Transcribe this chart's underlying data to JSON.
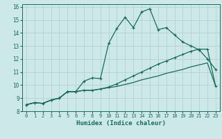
{
  "xlabel": "Humidex (Indice chaleur)",
  "bg_color": "#cce8e8",
  "grid_color": "#b8d4d4",
  "line_color": "#1a6b5a",
  "xlim": [
    -0.5,
    23.5
  ],
  "ylim": [
    8,
    16.2
  ],
  "yticks": [
    8,
    9,
    10,
    11,
    12,
    13,
    14,
    15,
    16
  ],
  "xticks": [
    0,
    1,
    2,
    3,
    4,
    5,
    6,
    7,
    8,
    9,
    10,
    11,
    12,
    13,
    14,
    15,
    16,
    17,
    18,
    19,
    20,
    21,
    22,
    23
  ],
  "line1_x": [
    0,
    1,
    2,
    3,
    4,
    5,
    6,
    7,
    8,
    9,
    10,
    11,
    12,
    13,
    14,
    15,
    16,
    17,
    18,
    19,
    20,
    21,
    22,
    23
  ],
  "line1_y": [
    8.5,
    8.65,
    8.6,
    8.85,
    9.0,
    9.5,
    9.5,
    10.3,
    10.55,
    10.5,
    13.2,
    14.35,
    15.2,
    14.4,
    15.6,
    15.85,
    14.25,
    14.4,
    13.85,
    13.3,
    13.0,
    12.7,
    12.0,
    11.2
  ],
  "line2_x": [
    0,
    1,
    2,
    3,
    4,
    5,
    6,
    7,
    8,
    9,
    10,
    11,
    12,
    13,
    14,
    15,
    16,
    17,
    18,
    19,
    20,
    21,
    22,
    23
  ],
  "line2_y": [
    8.5,
    8.65,
    8.6,
    8.85,
    9.0,
    9.5,
    9.5,
    9.6,
    9.6,
    9.7,
    9.85,
    10.1,
    10.4,
    10.7,
    11.0,
    11.3,
    11.6,
    11.85,
    12.1,
    12.35,
    12.6,
    12.75,
    12.75,
    9.9
  ],
  "line3_x": [
    0,
    1,
    2,
    3,
    4,
    5,
    6,
    7,
    8,
    9,
    10,
    11,
    12,
    13,
    14,
    15,
    16,
    17,
    18,
    19,
    20,
    21,
    22,
    23
  ],
  "line3_y": [
    8.5,
    8.65,
    8.6,
    8.85,
    9.0,
    9.5,
    9.5,
    9.6,
    9.6,
    9.7,
    9.8,
    9.9,
    10.05,
    10.2,
    10.4,
    10.55,
    10.7,
    10.9,
    11.05,
    11.2,
    11.4,
    11.55,
    11.7,
    9.9
  ]
}
